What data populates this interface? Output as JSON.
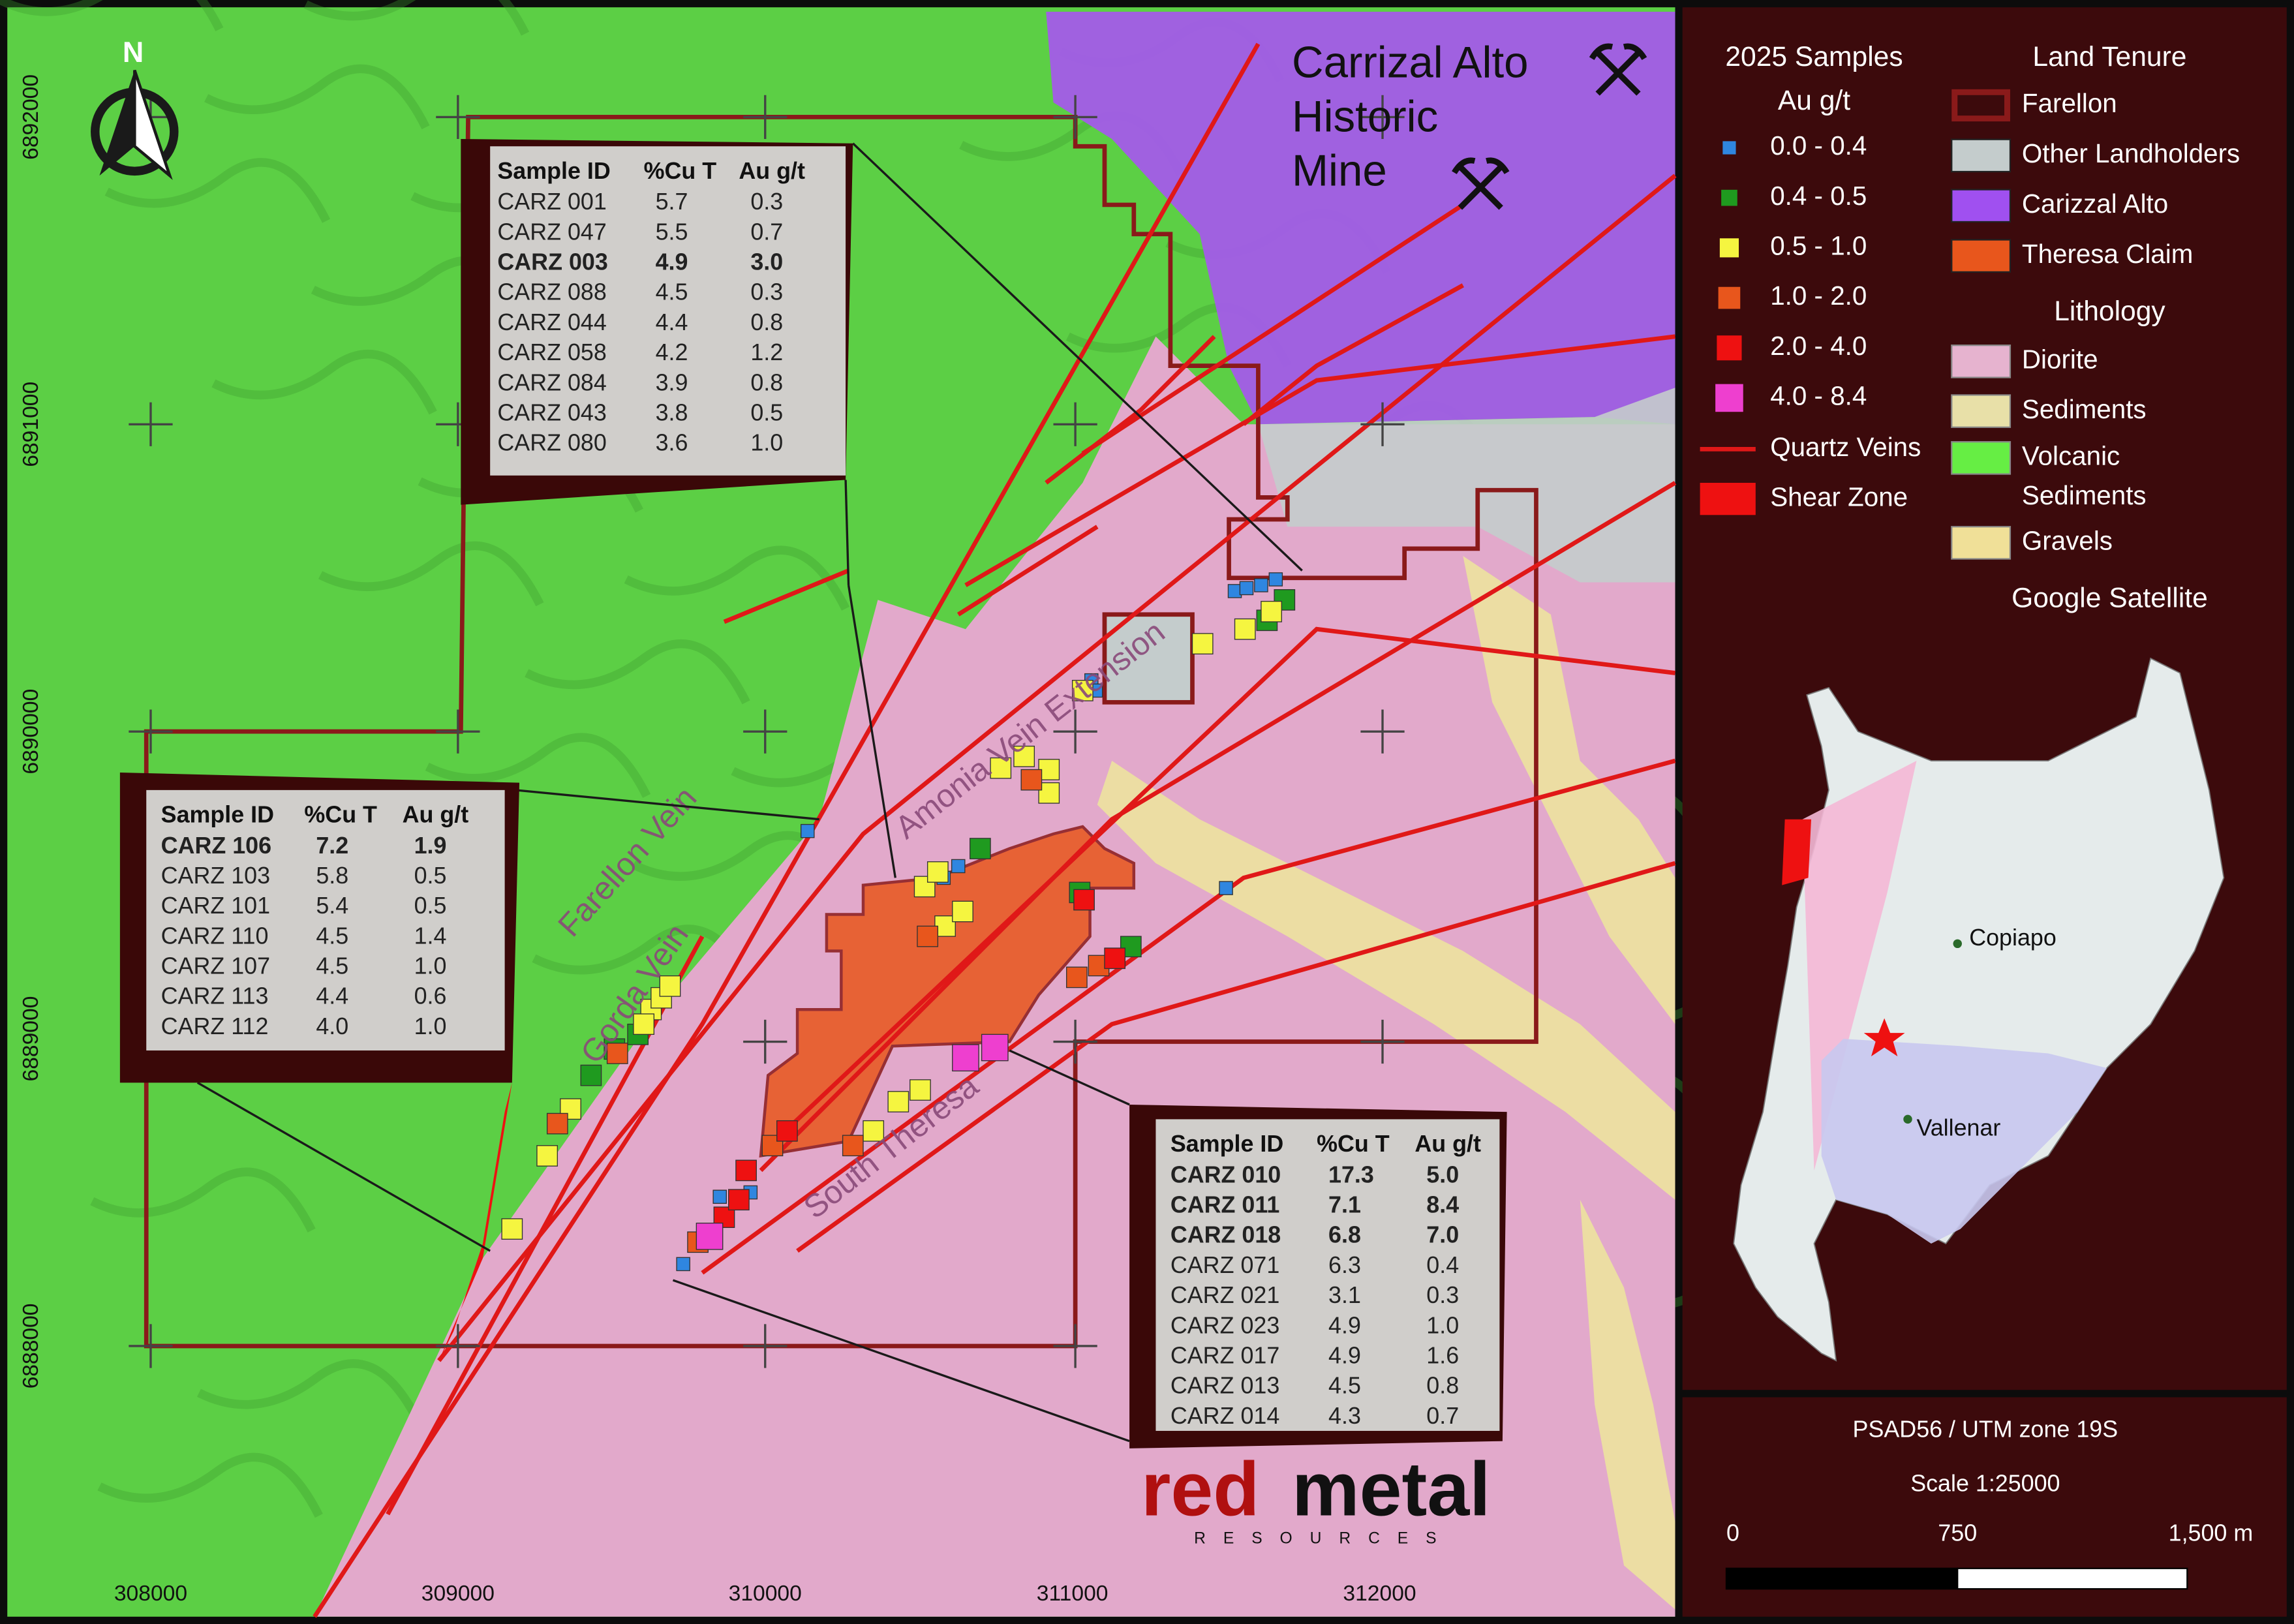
{
  "map": {
    "north": "N",
    "mine_label": [
      "Carrizal Alto",
      "Historic",
      "Mine"
    ],
    "vein_labels": [
      "Farellon Vein",
      "Gorda Vein",
      "Amonia Vein Extension",
      "South Theresa"
    ],
    "x_coords": [
      "308000",
      "309000",
      "310000",
      "311000",
      "312000"
    ],
    "y_coords": [
      "6892000",
      "6891000",
      "6890000",
      "6889000",
      "6888000"
    ],
    "tables": [
      {
        "header": [
          "Sample ID",
          "%Cu T",
          "Au g/t"
        ],
        "rows": [
          {
            "cells": [
              "CARZ 001",
              "5.7",
              "0.3"
            ]
          },
          {
            "cells": [
              "CARZ 047",
              "5.5",
              "0.7"
            ]
          },
          {
            "cells": [
              "CARZ 003",
              "4.9",
              "3.0"
            ],
            "bold": true
          },
          {
            "cells": [
              "CARZ 088",
              "4.5",
              "0.3"
            ]
          },
          {
            "cells": [
              "CARZ 044",
              "4.4",
              "0.8"
            ]
          },
          {
            "cells": [
              "CARZ 058",
              "4.2",
              "1.2"
            ]
          },
          {
            "cells": [
              "CARZ 084",
              "3.9",
              "0.8"
            ]
          },
          {
            "cells": [
              "CARZ 043",
              "3.8",
              "0.5"
            ]
          },
          {
            "cells": [
              "CARZ 080",
              "3.6",
              "1.0"
            ]
          }
        ]
      },
      {
        "header": [
          "Sample ID",
          "%Cu T",
          "Au g/t"
        ],
        "rows": [
          {
            "cells": [
              "CARZ 106",
              "7.2",
              "1.9"
            ],
            "bold": true
          },
          {
            "cells": [
              "CARZ 103",
              "5.8",
              "0.5"
            ]
          },
          {
            "cells": [
              "CARZ 101",
              "5.4",
              "0.5"
            ]
          },
          {
            "cells": [
              "CARZ 110",
              "4.5",
              "1.4"
            ]
          },
          {
            "cells": [
              "CARZ 107",
              "4.5",
              "1.0"
            ]
          },
          {
            "cells": [
              "CARZ 113",
              "4.4",
              "0.6"
            ]
          },
          {
            "cells": [
              "CARZ 112",
              "4.0",
              "1.0"
            ]
          }
        ]
      },
      {
        "header": [
          "Sample ID",
          "%Cu T",
          "Au g/t"
        ],
        "rows": [
          {
            "cells": [
              "CARZ 010",
              "17.3",
              "5.0"
            ],
            "bold": true
          },
          {
            "cells": [
              "CARZ 011",
              "7.1",
              "8.4"
            ],
            "bold": true
          },
          {
            "cells": [
              "CARZ 018",
              "6.8",
              "7.0"
            ],
            "bold": true
          },
          {
            "cells": [
              "CARZ 071",
              "6.3",
              "0.4"
            ]
          },
          {
            "cells": [
              "CARZ 021",
              "3.1",
              "0.3"
            ]
          },
          {
            "cells": [
              "CARZ 023",
              "4.9",
              "1.0"
            ]
          },
          {
            "cells": [
              "CARZ 017",
              "4.9",
              "1.6"
            ]
          },
          {
            "cells": [
              "CARZ 013",
              "4.5",
              "0.8"
            ]
          },
          {
            "cells": [
              "CARZ 014",
              "4.3",
              "0.7"
            ]
          }
        ]
      }
    ],
    "logo": {
      "part1": "red",
      "part2": "metal",
      "sub": "RESOURCES"
    }
  },
  "legend": {
    "samples_title": "2025 Samples",
    "samples_unit": "Au g/t",
    "samples": [
      {
        "label": "0.0 - 0.4",
        "color": "#2f86e0"
      },
      {
        "label": "0.4 - 0.5",
        "color": "#1f9a1f"
      },
      {
        "label": "0.5 - 1.0",
        "color": "#f5f540"
      },
      {
        "label": "1.0 - 2.0",
        "color": "#e8561c"
      },
      {
        "label": "2.0 - 4.0",
        "color": "#ee1111"
      },
      {
        "label": "4.0 - 8.4",
        "color": "#ee3fcf"
      }
    ],
    "lines": [
      {
        "label": "Quartz Veins",
        "color": "#e01818"
      },
      {
        "label": "Shear Zone",
        "color": "#ee1111"
      }
    ],
    "tenure_title": "Land Tenure",
    "tenure": [
      {
        "label": "Farellon",
        "color": "#8a1a1a",
        "outline": true
      },
      {
        "label": "Other Landholders",
        "color": "#c4cccc"
      },
      {
        "label": "Carizzal Alto",
        "color": "#a050f0"
      },
      {
        "label": "Theresa Claim",
        "color": "#e8561c"
      }
    ],
    "lithology_title": "Lithology",
    "lithology": [
      {
        "label": [
          "Diorite"
        ],
        "color": "#e6b3cf"
      },
      {
        "label": [
          "Sediments"
        ],
        "color": "#e8e0a8"
      },
      {
        "label": [
          "Volcanic",
          "Sediments"
        ],
        "color": "#66ee44"
      },
      {
        "label": [
          "Gravels"
        ],
        "color": "#f0e098"
      }
    ],
    "basemap": "Google Satellite"
  },
  "inset": {
    "cities": [
      "Copiapo",
      "Vallenar"
    ]
  },
  "footer": {
    "crs": "PSAD56 / UTM zone 19S",
    "scale": "Scale 1:25000",
    "bar_labels": [
      "0",
      "750",
      "1,500 m"
    ]
  }
}
